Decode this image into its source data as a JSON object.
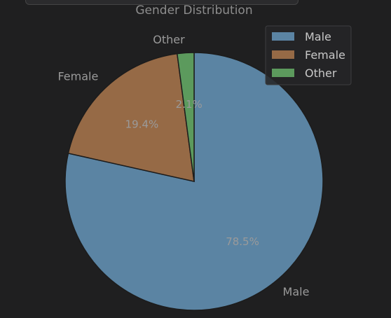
{
  "chart_data": {
    "type": "pie",
    "title": "Gender Distribution",
    "categories": [
      "Male",
      "Female",
      "Other"
    ],
    "values": [
      78.5,
      19.4,
      2.1
    ],
    "percent_labels": [
      "78.5%",
      "19.4%",
      "2.1%"
    ],
    "colors": [
      "#5b84a3",
      "#966a46",
      "#5c9a5d"
    ],
    "start_angle_deg": 90,
    "direction": "clockwise",
    "legend": {
      "placement": "top-right",
      "entries": [
        "Male",
        "Female",
        "Other"
      ]
    }
  },
  "theme": {
    "background": "#1f1f20",
    "text_color": "#c8c8c8",
    "muted_text_color": "#9a9a9a"
  }
}
